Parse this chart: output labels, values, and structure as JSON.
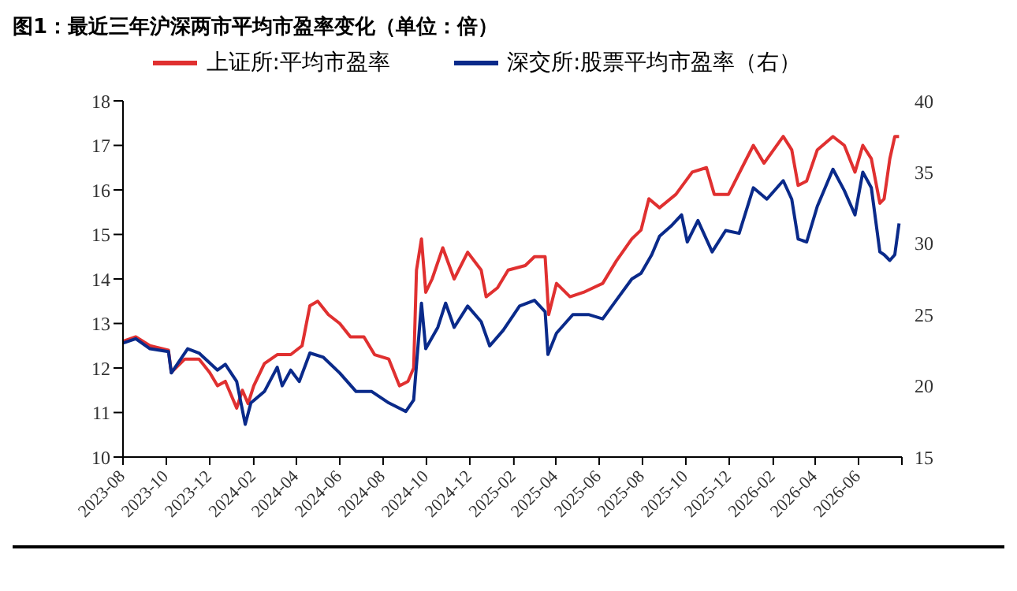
{
  "chart_data": {
    "type": "line",
    "title": "图1：最近三年沪深两市平均市盈率变化（单位：倍）",
    "legend": "top",
    "grid": false,
    "marker": "none",
    "line_style": "solid",
    "xlim": [
      "2023-08",
      "2026-08"
    ],
    "xticks": [
      "2023-08",
      "2023-10",
      "2023-12",
      "2024-02",
      "2024-04",
      "2024-06",
      "2024-08",
      "2024-10",
      "2024-12",
      "2025-02",
      "2025-04",
      "2025-06",
      "2025-08",
      "2025-10",
      "2025-12",
      "2026-02",
      "2026-04",
      "2026-06",
      {
        "value": "2026-08",
        "label": null
      }
    ],
    "ylim": [
      10,
      18
    ],
    "yticks": [
      10,
      11,
      12,
      13,
      14,
      15,
      16,
      17,
      18
    ],
    "y2lim": [
      15,
      40
    ],
    "y2ticks": [
      15,
      20,
      25,
      30,
      35,
      40
    ],
    "series": [
      {
        "name": "上证所:平均市盈率",
        "color": "#e03030",
        "x": [
          "2023-08-01",
          "2023-08-19",
          "2023-09-08",
          "2023-10-04",
          "2023-10-08",
          "2023-10-27",
          "2023-11-16",
          "2023-12-01",
          "2023-12-12",
          "2023-12-23",
          "2024-01-08",
          "2024-01-16",
          "2024-01-24",
          "2024-02-01",
          "2024-02-16",
          "2024-03-05",
          "2024-03-24",
          "2024-04-09",
          "2024-04-20",
          "2024-05-01",
          "2024-05-16",
          "2024-06-01",
          "2024-06-16",
          "2024-07-05",
          "2024-07-20",
          "2024-08-09",
          "2024-08-24",
          "2024-09-05",
          "2024-09-13",
          "2024-09-17",
          "2024-09-24",
          "2024-09-30",
          "2024-10-09",
          "2024-10-24",
          "2024-11-09",
          "2024-11-28",
          "2024-12-17",
          "2024-12-24",
          "2025-01-09",
          "2025-01-24",
          "2025-02-17",
          "2025-03-02",
          "2025-03-17",
          "2025-03-22",
          "2025-04-02",
          "2025-04-21",
          "2025-05-10",
          "2025-06-06",
          "2025-06-25",
          "2025-07-17",
          "2025-07-30",
          "2025-08-10",
          "2025-08-25",
          "2025-09-17",
          "2025-10-10",
          "2025-10-30",
          "2025-11-10",
          "2025-11-30",
          "2025-12-19",
          "2026-01-04",
          "2026-01-19",
          "2026-02-15",
          "2026-02-27",
          "2026-03-08",
          "2026-03-20",
          "2026-04-04",
          "2026-04-26",
          "2026-05-12",
          "2026-05-27",
          "2026-06-07",
          "2026-06-19",
          "2026-07-01",
          "2026-07-07",
          "2026-07-15",
          "2026-07-22",
          "2026-07-28"
        ],
        "values": [
          12.6,
          12.7,
          12.5,
          12.4,
          11.9,
          12.2,
          12.2,
          11.9,
          11.6,
          11.7,
          11.1,
          11.5,
          11.2,
          11.6,
          12.1,
          12.3,
          12.3,
          12.5,
          13.4,
          13.5,
          13.2,
          13.0,
          12.7,
          12.7,
          12.3,
          12.2,
          11.6,
          11.7,
          12.0,
          14.2,
          14.9,
          13.7,
          14.0,
          14.7,
          14.0,
          14.6,
          14.2,
          13.6,
          13.8,
          14.2,
          14.3,
          14.5,
          14.5,
          13.2,
          13.9,
          13.6,
          13.7,
          13.9,
          14.4,
          14.9,
          15.1,
          15.8,
          15.6,
          15.9,
          16.4,
          16.5,
          15.9,
          15.9,
          16.5,
          17.0,
          16.6,
          17.2,
          16.9,
          16.1,
          16.2,
          16.9,
          17.2,
          17.0,
          16.4,
          17.0,
          16.7,
          15.7,
          15.8,
          16.7,
          17.2,
          17.2
        ]
      },
      {
        "name": "深交所:股票平均市盈率（右）",
        "color": "#0a2a8a",
        "axis": "y2",
        "x": [
          "2023-08-01",
          "2023-08-19",
          "2023-09-08",
          "2023-10-04",
          "2023-10-08",
          "2023-10-31",
          "2023-11-16",
          "2023-12-12",
          "2023-12-23",
          "2024-01-08",
          "2024-01-20",
          "2024-01-28",
          "2024-02-16",
          "2024-03-05",
          "2024-03-12",
          "2024-03-24",
          "2024-04-05",
          "2024-04-20",
          "2024-05-09",
          "2024-06-01",
          "2024-06-24",
          "2024-07-16",
          "2024-08-09",
          "2024-09-02",
          "2024-09-13",
          "2024-09-24",
          "2024-09-30",
          "2024-10-17",
          "2024-10-28",
          "2024-11-09",
          "2024-11-28",
          "2024-12-17",
          "2024-12-29",
          "2025-01-17",
          "2025-02-09",
          "2025-03-02",
          "2025-03-17",
          "2025-03-21",
          "2025-04-02",
          "2025-04-25",
          "2025-05-17",
          "2025-06-06",
          "2025-06-25",
          "2025-07-17",
          "2025-07-30",
          "2025-08-14",
          "2025-08-25",
          "2025-09-10",
          "2025-09-25",
          "2025-10-03",
          "2025-10-18",
          "2025-11-07",
          "2025-11-26",
          "2025-12-15",
          "2026-01-04",
          "2026-01-23",
          "2026-02-15",
          "2026-02-27",
          "2026-03-08",
          "2026-03-20",
          "2026-04-04",
          "2026-04-26",
          "2026-05-12",
          "2026-05-27",
          "2026-06-07",
          "2026-06-19",
          "2026-07-01",
          "2026-07-07",
          "2026-07-15",
          "2026-07-22",
          "2026-07-28"
        ],
        "values": [
          23.0,
          23.3,
          22.6,
          22.4,
          20.9,
          22.6,
          22.3,
          21.1,
          21.5,
          20.3,
          17.3,
          18.8,
          19.6,
          21.3,
          20.0,
          21.1,
          20.3,
          22.3,
          22.0,
          20.9,
          19.6,
          19.6,
          18.8,
          18.2,
          19.0,
          25.8,
          22.6,
          24.1,
          25.8,
          24.1,
          25.6,
          24.5,
          22.8,
          23.9,
          25.6,
          26.0,
          25.2,
          22.2,
          23.7,
          25.0,
          25.0,
          24.7,
          26.0,
          27.5,
          27.9,
          29.2,
          30.5,
          31.2,
          32.0,
          30.1,
          31.6,
          29.4,
          30.9,
          30.7,
          33.9,
          33.1,
          34.4,
          33.1,
          30.3,
          30.1,
          32.6,
          35.2,
          33.7,
          32.0,
          35.0,
          33.9,
          29.4,
          29.2,
          28.8,
          29.2,
          31.4
        ]
      }
    ]
  }
}
